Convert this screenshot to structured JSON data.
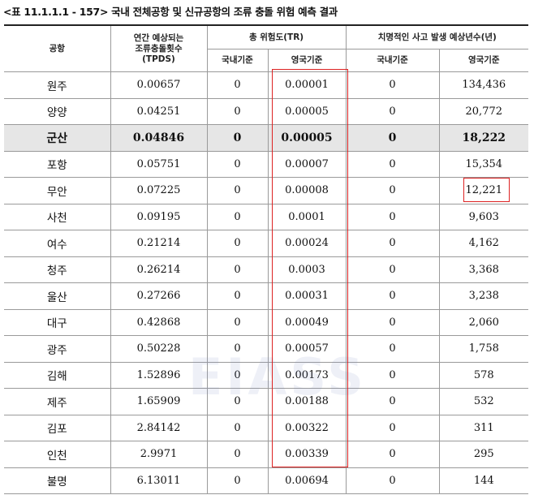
{
  "caption": "<표 11.1.1.1 - 157> 국내 전체공항 및 신규공항의 조류 충돌 위험 예측 결과",
  "headers": {
    "airport": "공항",
    "tpds": "연간 예상되는\n조류충돌횟수\n(TPDS)",
    "total_risk": "총 위험도(TR)",
    "fatal_years": "치명적인 사고 발생 예상년수(년)",
    "domestic": "국내기준",
    "uk": "영국기준"
  },
  "rows": [
    {
      "airport": "원주",
      "tpds": "0.00657",
      "tr_domestic": "0",
      "tr_uk": "0.00001",
      "years_domestic": "0",
      "years_uk": "134,436"
    },
    {
      "airport": "양양",
      "tpds": "0.04251",
      "tr_domestic": "0",
      "tr_uk": "0.00005",
      "years_domestic": "0",
      "years_uk": "20,772"
    },
    {
      "airport": "군산",
      "tpds": "0.04846",
      "tr_domestic": "0",
      "tr_uk": "0.00005",
      "years_domestic": "0",
      "years_uk": "18,222",
      "highlight": true
    },
    {
      "airport": "포항",
      "tpds": "0.05751",
      "tr_domestic": "0",
      "tr_uk": "0.00007",
      "years_domestic": "0",
      "years_uk": "15,354"
    },
    {
      "airport": "무안",
      "tpds": "0.07225",
      "tr_domestic": "0",
      "tr_uk": "0.00008",
      "years_domestic": "0",
      "years_uk": "12,221"
    },
    {
      "airport": "사천",
      "tpds": "0.09195",
      "tr_domestic": "0",
      "tr_uk": "0.0001",
      "years_domestic": "0",
      "years_uk": "9,603"
    },
    {
      "airport": "여수",
      "tpds": "0.21214",
      "tr_domestic": "0",
      "tr_uk": "0.00024",
      "years_domestic": "0",
      "years_uk": "4,162"
    },
    {
      "airport": "청주",
      "tpds": "0.26214",
      "tr_domestic": "0",
      "tr_uk": "0.0003",
      "years_domestic": "0",
      "years_uk": "3,368"
    },
    {
      "airport": "울산",
      "tpds": "0.27266",
      "tr_domestic": "0",
      "tr_uk": "0.00031",
      "years_domestic": "0",
      "years_uk": "3,238"
    },
    {
      "airport": "대구",
      "tpds": "0.42868",
      "tr_domestic": "0",
      "tr_uk": "0.00049",
      "years_domestic": "0",
      "years_uk": "2,060"
    },
    {
      "airport": "광주",
      "tpds": "0.50228",
      "tr_domestic": "0",
      "tr_uk": "0.00057",
      "years_domestic": "0",
      "years_uk": "1,758"
    },
    {
      "airport": "김해",
      "tpds": "1.52896",
      "tr_domestic": "0",
      "tr_uk": "0.00173",
      "years_domestic": "0",
      "years_uk": "578"
    },
    {
      "airport": "제주",
      "tpds": "1.65909",
      "tr_domestic": "0",
      "tr_uk": "0.00188",
      "years_domestic": "0",
      "years_uk": "532"
    },
    {
      "airport": "김포",
      "tpds": "2.84142",
      "tr_domestic": "0",
      "tr_uk": "0.00322",
      "years_domestic": "0",
      "years_uk": "311"
    },
    {
      "airport": "인천",
      "tpds": "2.9971",
      "tr_domestic": "0",
      "tr_uk": "0.00339",
      "years_domestic": "0",
      "years_uk": "295"
    },
    {
      "airport": "불명",
      "tpds": "6.13011",
      "tr_domestic": "0",
      "tr_uk": "0.00694",
      "years_domestic": "0",
      "years_uk": "144"
    }
  ],
  "watermark": "EIASS",
  "colors": {
    "highlight_row": "#e6e6e6",
    "red_box": "#dd2222"
  }
}
